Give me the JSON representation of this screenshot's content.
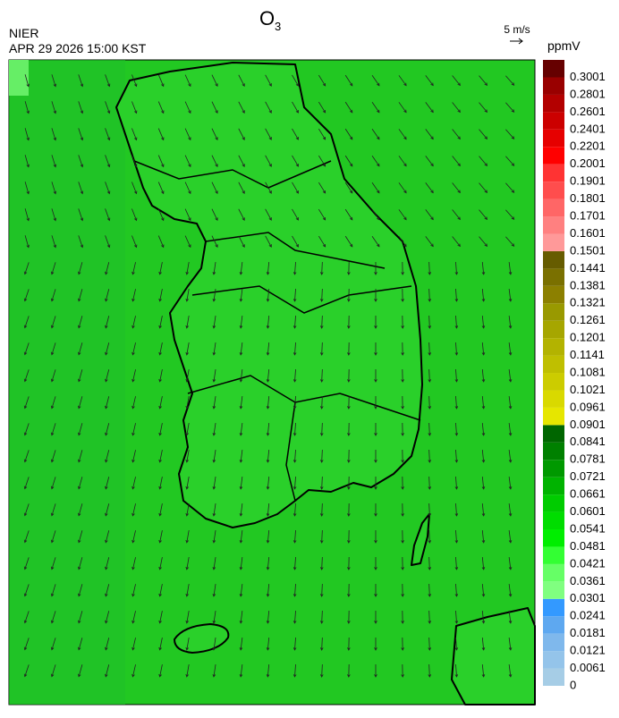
{
  "header": {
    "title": {
      "main": "O",
      "sub": "3"
    },
    "agency": "NIER",
    "timestamp": "APR 29 2026 15:00 KST"
  },
  "wind_legend": {
    "label": "5 m/s"
  },
  "colorbar": {
    "unit": "ppmV",
    "labels": [
      "0",
      "0.0061",
      "0.0121",
      "0.0181",
      "0.0241",
      "0.0301",
      "0.0361",
      "0.0421",
      "0.0481",
      "0.0541",
      "0.0601",
      "0.0661",
      "0.0721",
      "0.0781",
      "0.0841",
      "0.0901",
      "0.0961",
      "0.1021",
      "0.1081",
      "0.1141",
      "0.1201",
      "0.1261",
      "0.1321",
      "0.1381",
      "0.1441",
      "0.1501",
      "0.1601",
      "0.1701",
      "0.1801",
      "0.1901",
      "0.2001",
      "0.2201",
      "0.2401",
      "0.2601",
      "0.2801",
      "0.3001"
    ],
    "colors": [
      "#a6cde6",
      "#94c4ea",
      "#7fb8ec",
      "#5ea8f0",
      "#3399ff",
      "#80ff80",
      "#66ff66",
      "#33ff33",
      "#00ee00",
      "#00dd00",
      "#00cc00",
      "#00b300",
      "#009900",
      "#008000",
      "#006600",
      "#e6e600",
      "#d9d900",
      "#cccc00",
      "#bfbf00",
      "#b3b300",
      "#a6a600",
      "#999900",
      "#8c8000",
      "#7a7000",
      "#665c00",
      "#ff9999",
      "#ff8080",
      "#ff6666",
      "#ff4d4d",
      "#ff3333",
      "#ff0000",
      "#e60000",
      "#cc0000",
      "#b30000",
      "#990000",
      "#660000"
    ]
  }
}
